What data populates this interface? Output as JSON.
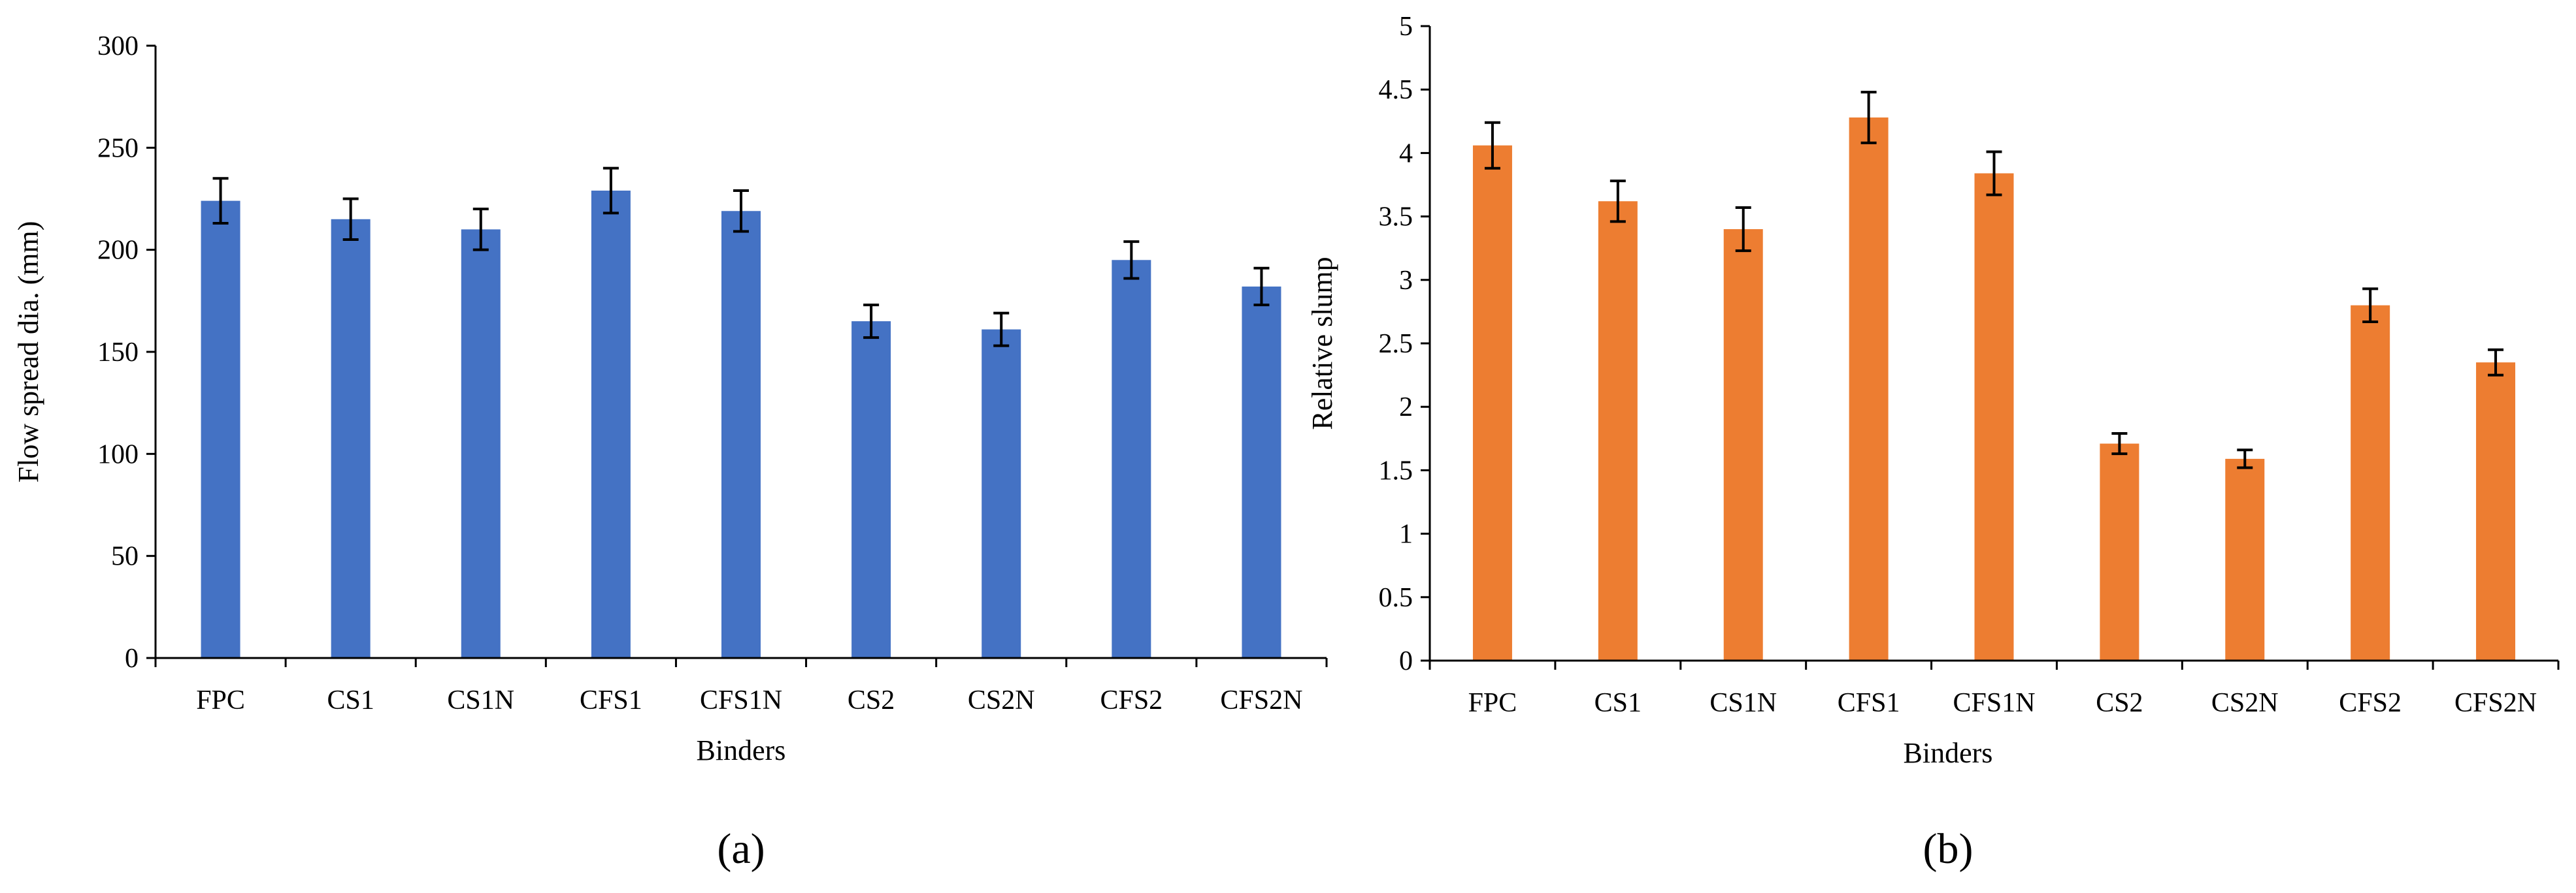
{
  "colors": {
    "panel_a": "#4472C4",
    "panel_b": "#ED7D31"
  },
  "chart_data": [
    {
      "type": "bar",
      "panel_label": "(a)",
      "title": "",
      "xlabel": "Binders",
      "ylabel": "Flow spread dia. (mm)",
      "ylim": [
        0,
        300
      ],
      "yticks": [
        0,
        50,
        100,
        150,
        200,
        250,
        300
      ],
      "ytick_labels": [
        "0",
        "50",
        "100",
        "150",
        "200",
        "250",
        "300"
      ],
      "categories": [
        "FPC",
        "CS1",
        "CS1N",
        "CFS1",
        "CFS1N",
        "CS2",
        "CS2N",
        "CFS2",
        "CFS2N"
      ],
      "values": [
        224,
        215,
        210,
        229,
        219,
        165,
        161,
        195,
        182
      ],
      "errors": [
        11,
        10,
        10,
        11,
        10,
        8,
        8,
        9,
        9
      ],
      "grid": false,
      "legend": "none"
    },
    {
      "type": "bar",
      "panel_label": "(b)",
      "title": "",
      "xlabel": "Binders",
      "ylabel": "Relative slump",
      "ylim": [
        0,
        5
      ],
      "yticks": [
        0,
        0.5,
        1,
        1.5,
        2,
        2.5,
        3,
        3.5,
        4,
        4.5,
        5
      ],
      "ytick_labels": [
        "0",
        "0.5",
        "1",
        "1.5",
        "2",
        "2.5",
        "3",
        "3.5",
        "4",
        "4.5",
        "5"
      ],
      "categories": [
        "FPC",
        "CS1",
        "CS1N",
        "CFS1",
        "CFS1N",
        "CS2",
        "CS2N",
        "CFS2",
        "CFS2N"
      ],
      "values": [
        4.06,
        3.62,
        3.4,
        4.28,
        3.84,
        1.71,
        1.59,
        2.8,
        2.35
      ],
      "errors": [
        0.18,
        0.16,
        0.17,
        0.2,
        0.17,
        0.08,
        0.07,
        0.13,
        0.1
      ],
      "grid": false,
      "legend": "none"
    }
  ]
}
